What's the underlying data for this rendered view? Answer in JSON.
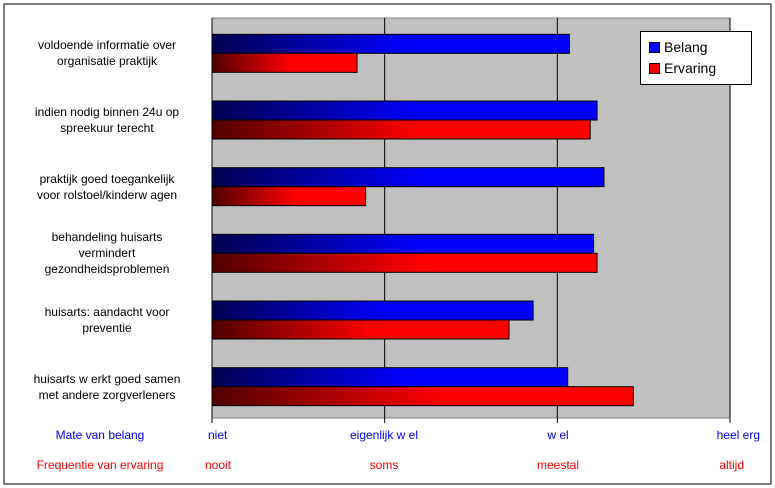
{
  "chart_data": {
    "type": "bar",
    "orientation": "horizontal",
    "categories": [
      "voldoende informatie over\norganisatie praktijk",
      "indien nodig binnen 24u op\nspreekuur terecht",
      "praktijk goed toegankelijk\nvoor rolstoel/kinderw agen",
      "behandeling huisarts\nvermindert\ngezondheidsproblemen",
      "huisarts: aandacht voor\npreventie",
      "huisarts w erkt goed samen\nmet andere zorgverleners"
    ],
    "series": [
      {
        "name": "Belang",
        "color": "#0000cc",
        "values": [
          2.07,
          2.23,
          2.27,
          2.21,
          1.86,
          2.06
        ]
      },
      {
        "name": "Ervaring",
        "color": "#cc0000",
        "values": [
          0.84,
          2.19,
          0.89,
          2.23,
          1.72,
          2.44
        ]
      }
    ],
    "xlim": [
      0,
      3
    ],
    "grid": true,
    "legend": "top-right",
    "plot_background": "#c0c0c0",
    "scales": [
      {
        "title": "Mate van belang",
        "color": "#0000ff",
        "ticks": [
          "niet",
          "eigenlijk w el",
          "w el",
          "heel erg"
        ]
      },
      {
        "title": "Frequentie van ervaring",
        "color": "#ff0000",
        "ticks": [
          "nooit",
          "soms",
          "meestal",
          "altijd"
        ]
      }
    ]
  }
}
